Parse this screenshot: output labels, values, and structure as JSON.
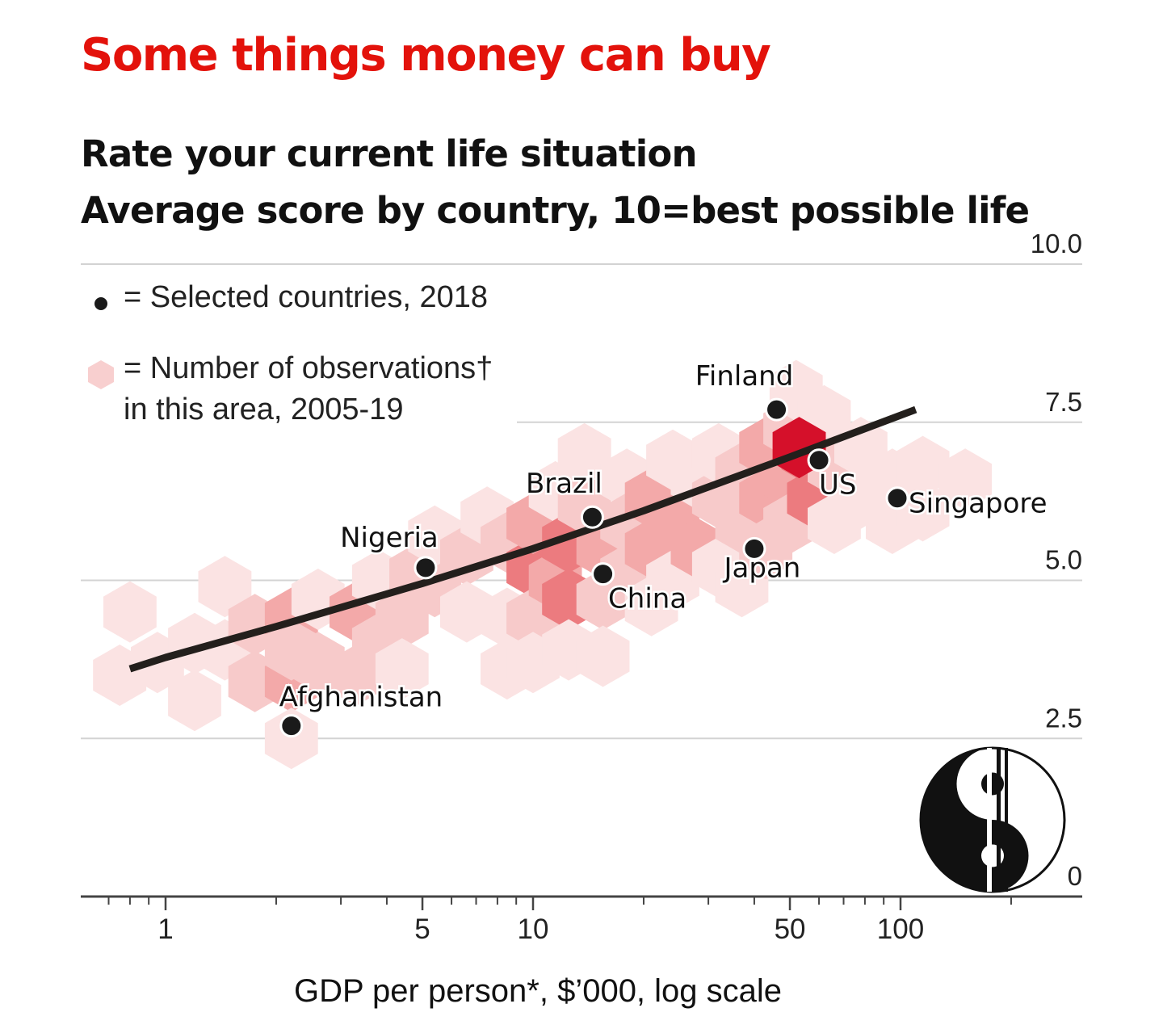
{
  "title": "Some things money can buy",
  "subtitle": {
    "line1": "Rate your current life situation",
    "line2": "Average score by country, 10=best possible life"
  },
  "legend": {
    "dot_label": "= Selected countries, 2018",
    "hex_label_line1": "= Number of observations†",
    "hex_label_line2": "in this area, 2005-19"
  },
  "colors": {
    "title": "#e3120b",
    "dot": "#1a1a1a",
    "trend": "#231f1c",
    "hex_scale": [
      "#fbe3e3",
      "#f7caca",
      "#f3a9a9",
      "#ec7b7f",
      "#d5102a"
    ]
  },
  "logo": {
    "name": "publisher-logo"
  },
  "chart_data": {
    "type": "scatter",
    "x_scale": "log",
    "xlabel": "GDP per person*, $’000, log scale",
    "ylabel": "",
    "xlim": [
      0.7,
      250
    ],
    "ylim": [
      0,
      10
    ],
    "x_ticks": [
      1,
      5,
      10,
      50,
      100
    ],
    "x_tick_labels": [
      "1",
      "5",
      "10",
      "50",
      "100"
    ],
    "y_ticks": [
      0,
      2.5,
      5,
      7.5,
      10
    ],
    "y_tick_labels": [
      "0",
      "2.5",
      "5.0",
      "7.5",
      "10.0"
    ],
    "grid": true,
    "series": [
      {
        "name": "Selected countries, 2018",
        "points": [
          {
            "label": "Afghanistan",
            "x": 2.2,
            "y": 2.7
          },
          {
            "label": "Nigeria",
            "x": 5.1,
            "y": 5.2
          },
          {
            "label": "Brazil",
            "x": 14.5,
            "y": 6.0
          },
          {
            "label": "China",
            "x": 15.5,
            "y": 5.1
          },
          {
            "label": "Finland",
            "x": 46,
            "y": 7.7
          },
          {
            "label": "Japan",
            "x": 40,
            "y": 5.5
          },
          {
            "label": "US",
            "x": 60,
            "y": 6.9
          },
          {
            "label": "Singapore",
            "x": 98,
            "y": 6.3
          }
        ]
      },
      {
        "name": "Trend",
        "x": [
          0.8,
          1,
          2,
          5,
          10,
          20,
          50,
          110
        ],
        "y": [
          3.6,
          3.78,
          4.27,
          4.95,
          5.5,
          6.1,
          6.95,
          7.7
        ]
      }
    ],
    "observation_density": {
      "label": "Number of observations† in this area, 2005-19",
      "cells": [
        {
          "x": 0.8,
          "y": 4.5,
          "level": 1
        },
        {
          "x": 0.75,
          "y": 3.5,
          "level": 1
        },
        {
          "x": 0.95,
          "y": 3.7,
          "level": 1
        },
        {
          "x": 1.2,
          "y": 4.0,
          "level": 1
        },
        {
          "x": 1.2,
          "y": 3.1,
          "level": 1
        },
        {
          "x": 1.45,
          "y": 3.9,
          "level": 1
        },
        {
          "x": 1.45,
          "y": 4.9,
          "level": 1
        },
        {
          "x": 1.75,
          "y": 4.3,
          "level": 2
        },
        {
          "x": 1.75,
          "y": 3.4,
          "level": 2
        },
        {
          "x": 2.2,
          "y": 4.4,
          "level": 3
        },
        {
          "x": 2.2,
          "y": 3.4,
          "level": 3
        },
        {
          "x": 2.2,
          "y": 3.9,
          "level": 2
        },
        {
          "x": 2.2,
          "y": 2.5,
          "level": 1
        },
        {
          "x": 2.6,
          "y": 3.7,
          "level": 2
        },
        {
          "x": 2.6,
          "y": 4.7,
          "level": 1
        },
        {
          "x": 3.3,
          "y": 4.5,
          "level": 3
        },
        {
          "x": 3.3,
          "y": 3.5,
          "level": 2
        },
        {
          "x": 3.8,
          "y": 4.0,
          "level": 2
        },
        {
          "x": 3.8,
          "y": 5.0,
          "level": 1
        },
        {
          "x": 4.4,
          "y": 4.4,
          "level": 2
        },
        {
          "x": 4.4,
          "y": 3.6,
          "level": 1
        },
        {
          "x": 4.8,
          "y": 5.1,
          "level": 2
        },
        {
          "x": 5.4,
          "y": 4.9,
          "level": 2
        },
        {
          "x": 5.4,
          "y": 5.7,
          "level": 1
        },
        {
          "x": 6.6,
          "y": 5.4,
          "level": 2
        },
        {
          "x": 6.6,
          "y": 4.5,
          "level": 1
        },
        {
          "x": 7.5,
          "y": 6.0,
          "level": 1
        },
        {
          "x": 8.5,
          "y": 5.6,
          "level": 2
        },
        {
          "x": 8.5,
          "y": 4.4,
          "level": 1
        },
        {
          "x": 8.5,
          "y": 3.6,
          "level": 1
        },
        {
          "x": 10,
          "y": 5.2,
          "level": 4
        },
        {
          "x": 10,
          "y": 5.9,
          "level": 3
        },
        {
          "x": 10,
          "y": 4.4,
          "level": 2
        },
        {
          "x": 10,
          "y": 3.7,
          "level": 1
        },
        {
          "x": 11.5,
          "y": 6.4,
          "level": 1
        },
        {
          "x": 11.5,
          "y": 5.0,
          "level": 3
        },
        {
          "x": 12.5,
          "y": 5.6,
          "level": 4
        },
        {
          "x": 12.5,
          "y": 4.7,
          "level": 4
        },
        {
          "x": 12.5,
          "y": 3.9,
          "level": 1
        },
        {
          "x": 13.8,
          "y": 6.2,
          "level": 2
        },
        {
          "x": 13.8,
          "y": 7.0,
          "level": 1
        },
        {
          "x": 15.5,
          "y": 5.5,
          "level": 3
        },
        {
          "x": 15.5,
          "y": 4.7,
          "level": 2
        },
        {
          "x": 15.5,
          "y": 3.8,
          "level": 1
        },
        {
          "x": 18,
          "y": 6.6,
          "level": 1
        },
        {
          "x": 18,
          "y": 5.9,
          "level": 2
        },
        {
          "x": 18,
          "y": 5.1,
          "level": 2
        },
        {
          "x": 21,
          "y": 6.3,
          "level": 3
        },
        {
          "x": 21,
          "y": 5.5,
          "level": 3
        },
        {
          "x": 21,
          "y": 4.6,
          "level": 1
        },
        {
          "x": 24,
          "y": 6.9,
          "level": 1
        },
        {
          "x": 24,
          "y": 5.9,
          "level": 3
        },
        {
          "x": 24,
          "y": 5.0,
          "level": 1
        },
        {
          "x": 28,
          "y": 6.6,
          "level": 1
        },
        {
          "x": 28,
          "y": 5.5,
          "level": 3
        },
        {
          "x": 32,
          "y": 6.3,
          "level": 2
        },
        {
          "x": 32,
          "y": 5.2,
          "level": 1
        },
        {
          "x": 32,
          "y": 7.0,
          "level": 1
        },
        {
          "x": 37,
          "y": 6.7,
          "level": 2
        },
        {
          "x": 37,
          "y": 5.9,
          "level": 2
        },
        {
          "x": 37,
          "y": 4.9,
          "level": 1
        },
        {
          "x": 43,
          "y": 7.1,
          "level": 3
        },
        {
          "x": 43,
          "y": 6.3,
          "level": 3
        },
        {
          "x": 43,
          "y": 5.5,
          "level": 2
        },
        {
          "x": 50,
          "y": 7.4,
          "level": 2
        },
        {
          "x": 50,
          "y": 6.6,
          "level": 3
        },
        {
          "x": 50,
          "y": 5.9,
          "level": 2
        },
        {
          "x": 52,
          "y": 8.0,
          "level": 1
        },
        {
          "x": 56,
          "y": 7.0,
          "level": 4
        },
        {
          "x": 58,
          "y": 6.3,
          "level": 4
        },
        {
          "x": 62,
          "y": 7.6,
          "level": 1
        },
        {
          "x": 66,
          "y": 6.8,
          "level": 2
        },
        {
          "x": 66,
          "y": 5.9,
          "level": 1
        },
        {
          "x": 78,
          "y": 7.1,
          "level": 1
        },
        {
          "x": 78,
          "y": 6.3,
          "level": 1
        },
        {
          "x": 95,
          "y": 6.6,
          "level": 1
        },
        {
          "x": 95,
          "y": 5.9,
          "level": 1
        },
        {
          "x": 115,
          "y": 6.8,
          "level": 1
        },
        {
          "x": 115,
          "y": 6.1,
          "level": 1
        },
        {
          "x": 150,
          "y": 6.6,
          "level": 1
        },
        {
          "x": 53,
          "y": 7.1,
          "level": 5
        }
      ]
    }
  }
}
